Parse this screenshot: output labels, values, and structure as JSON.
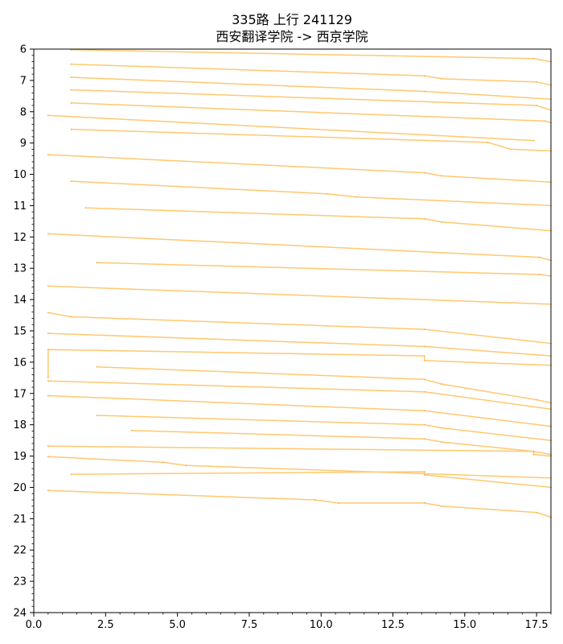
{
  "chart_data": {
    "type": "line",
    "title": "335路 上行 241129",
    "subtitle": "西安翻译学院 -> 西京学院",
    "xlabel": "",
    "ylabel": "",
    "xlim": [
      0,
      18
    ],
    "ylim": [
      6,
      24
    ],
    "y_inverted": true,
    "grid": false,
    "x_ticks": [
      "0.0",
      "2.5",
      "5.0",
      "7.5",
      "10.0",
      "12.5",
      "15.0",
      "17.5"
    ],
    "y_ticks": [
      "6",
      "7",
      "8",
      "9",
      "10",
      "11",
      "12",
      "13",
      "14",
      "15",
      "16",
      "17",
      "18",
      "19",
      "20",
      "21",
      "22",
      "23",
      "24"
    ],
    "line_color": "#ffc870",
    "series": [
      {
        "x": [
          1.3,
          17.4,
          18.0
        ],
        "y": [
          6.02,
          6.3,
          6.4
        ]
      },
      {
        "x": [
          1.3,
          13.6,
          14.2,
          17.5,
          18.0
        ],
        "y": [
          6.48,
          6.85,
          6.95,
          7.05,
          7.15
        ]
      },
      {
        "x": [
          1.3,
          13.6,
          18.0
        ],
        "y": [
          6.9,
          7.35,
          7.6
        ]
      },
      {
        "x": [
          1.3,
          17.5,
          18.0
        ],
        "y": [
          7.3,
          7.8,
          7.95
        ]
      },
      {
        "x": [
          1.3,
          17.8,
          18.0
        ],
        "y": [
          7.72,
          8.3,
          8.35
        ]
      },
      {
        "x": [
          0.5,
          17.4
        ],
        "y": [
          8.12,
          8.92
        ]
      },
      {
        "x": [
          1.3,
          15.8,
          16.6,
          18.0
        ],
        "y": [
          8.56,
          8.98,
          9.2,
          9.25
        ]
      },
      {
        "x": [
          0.5,
          13.6,
          14.2,
          18.0
        ],
        "y": [
          9.37,
          9.95,
          10.05,
          10.25
        ]
      },
      {
        "x": [
          1.3,
          10.2,
          11.2,
          18.0
        ],
        "y": [
          10.22,
          10.62,
          10.72,
          11.0
        ]
      },
      {
        "x": [
          1.8,
          13.6,
          14.2,
          18.0
        ],
        "y": [
          11.07,
          11.42,
          11.52,
          11.8
        ]
      },
      {
        "x": [
          0.5,
          17.6,
          18.0
        ],
        "y": [
          11.9,
          12.65,
          12.75
        ]
      },
      {
        "x": [
          2.2,
          17.6,
          18.0
        ],
        "y": [
          12.82,
          13.2,
          13.25
        ]
      },
      {
        "x": [
          0.5,
          18.0
        ],
        "y": [
          13.57,
          14.15
        ]
      },
      {
        "x": [
          0.5,
          1.3,
          13.6,
          18.0
        ],
        "y": [
          14.42,
          14.55,
          14.95,
          15.4
        ]
      },
      {
        "x": [
          0.5,
          13.6,
          18.0
        ],
        "y": [
          15.08,
          15.5,
          15.8
        ]
      },
      {
        "x": [
          0.5,
          0.5,
          13.6,
          13.6,
          18.0
        ],
        "y": [
          16.5,
          15.6,
          15.8,
          15.95,
          16.1
        ]
      },
      {
        "x": [
          0.5,
          13.6,
          18.0
        ],
        "y": [
          16.6,
          16.95,
          17.5
        ]
      },
      {
        "x": [
          2.2,
          13.6,
          14.2,
          17.5,
          18.0
        ],
        "y": [
          16.15,
          16.55,
          16.7,
          17.2,
          17.3
        ]
      },
      {
        "x": [
          0.5,
          13.6,
          18.0
        ],
        "y": [
          17.07,
          17.55,
          18.05
        ]
      },
      {
        "x": [
          2.2,
          13.6,
          14.2,
          18.0
        ],
        "y": [
          17.7,
          18.0,
          18.1,
          18.5
        ]
      },
      {
        "x": [
          3.4,
          13.6,
          14.2,
          17.4,
          18.0
        ],
        "y": [
          18.18,
          18.45,
          18.55,
          18.85,
          18.95
        ]
      },
      {
        "x": [
          0.5,
          17.4,
          17.4,
          18.0
        ],
        "y": [
          18.68,
          18.85,
          18.95,
          19.0
        ]
      },
      {
        "x": [
          0.5,
          4.5,
          5.3,
          18.0
        ],
        "y": [
          19.02,
          19.2,
          19.3,
          19.7
        ]
      },
      {
        "x": [
          1.3,
          13.6,
          13.6,
          18.0
        ],
        "y": [
          19.58,
          19.5,
          19.6,
          20.0
        ]
      },
      {
        "x": [
          0.5,
          9.8,
          10.6,
          13.6,
          14.2,
          17.5,
          18.0
        ],
        "y": [
          20.1,
          20.4,
          20.5,
          20.5,
          20.6,
          20.8,
          20.95
        ]
      }
    ]
  }
}
